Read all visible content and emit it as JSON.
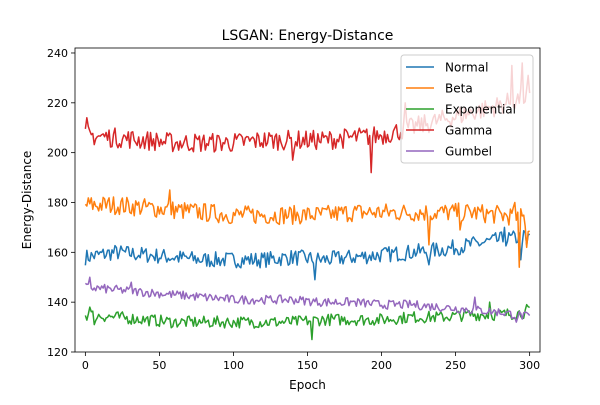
{
  "chart_data": {
    "type": "line",
    "title": "LSGAN: Energy-Distance",
    "xlabel": "Epoch",
    "ylabel": "Energy-Distance",
    "xlim": [
      -7,
      307
    ],
    "ylim": [
      120,
      242
    ],
    "x_ticks": [
      0,
      50,
      100,
      150,
      200,
      250,
      300
    ],
    "y_ticks": [
      120,
      140,
      160,
      180,
      200,
      220,
      240
    ],
    "grid": false,
    "legend_position": "top-right",
    "series": [
      {
        "name": "Normal",
        "color": "#1f77b4",
        "anchors": [
          [
            0,
            158
          ],
          [
            20,
            160
          ],
          [
            40,
            159
          ],
          [
            60,
            158
          ],
          [
            80,
            157
          ],
          [
            100,
            157
          ],
          [
            120,
            157
          ],
          [
            140,
            158
          ],
          [
            160,
            157
          ],
          [
            180,
            158
          ],
          [
            200,
            159
          ],
          [
            220,
            160
          ],
          [
            240,
            161
          ],
          [
            260,
            163
          ],
          [
            280,
            165
          ],
          [
            295,
            166
          ],
          [
            300,
            166
          ]
        ],
        "noise": 3.2,
        "spikes": [
          [
            155,
            149
          ],
          [
            232,
            155
          ],
          [
            283,
            170
          ],
          [
            294,
            157
          ],
          [
            298,
            163
          ]
        ]
      },
      {
        "name": "Beta",
        "color": "#ff7f0e",
        "anchors": [
          [
            0,
            179
          ],
          [
            20,
            179
          ],
          [
            40,
            178
          ],
          [
            60,
            177
          ],
          [
            80,
            176
          ],
          [
            100,
            175
          ],
          [
            120,
            175
          ],
          [
            140,
            175
          ],
          [
            160,
            175
          ],
          [
            180,
            176
          ],
          [
            200,
            176
          ],
          [
            220,
            176
          ],
          [
            240,
            176
          ],
          [
            260,
            176
          ],
          [
            280,
            175
          ],
          [
            296,
            174
          ],
          [
            300,
            169
          ]
        ],
        "noise": 3.8,
        "spikes": [
          [
            57,
            185
          ],
          [
            232,
            163
          ],
          [
            253,
            169
          ],
          [
            290,
            180
          ],
          [
            293,
            154
          ],
          [
            298,
            162
          ]
        ]
      },
      {
        "name": "Exponential",
        "color": "#2ca02c",
        "anchors": [
          [
            0,
            135
          ],
          [
            20,
            134
          ],
          [
            40,
            133
          ],
          [
            60,
            132
          ],
          [
            80,
            132
          ],
          [
            100,
            132
          ],
          [
            120,
            132
          ],
          [
            140,
            132
          ],
          [
            160,
            133
          ],
          [
            180,
            133
          ],
          [
            200,
            133
          ],
          [
            220,
            134
          ],
          [
            240,
            134
          ],
          [
            260,
            135
          ],
          [
            280,
            135
          ],
          [
            300,
            136
          ]
        ],
        "noise": 2.4,
        "spikes": [
          [
            3,
            138
          ],
          [
            6,
            131
          ],
          [
            153,
            125
          ],
          [
            273,
            140
          ],
          [
            298,
            139
          ]
        ]
      },
      {
        "name": "Gamma",
        "color": "#d62728",
        "anchors": [
          [
            0,
            207
          ],
          [
            20,
            206
          ],
          [
            40,
            205
          ],
          [
            60,
            204
          ],
          [
            80,
            204
          ],
          [
            100,
            204
          ],
          [
            120,
            205
          ],
          [
            140,
            205
          ],
          [
            160,
            205
          ],
          [
            180,
            206
          ],
          [
            200,
            207
          ],
          [
            220,
            210
          ],
          [
            240,
            213
          ],
          [
            260,
            216
          ],
          [
            280,
            219
          ],
          [
            300,
            223
          ]
        ],
        "noise": 4.0,
        "spikes": [
          [
            1,
            214
          ],
          [
            140,
            197
          ],
          [
            193,
            192
          ],
          [
            216,
            220
          ],
          [
            288,
            235
          ],
          [
            295,
            236
          ],
          [
            299,
            231
          ]
        ]
      },
      {
        "name": "Gumbel",
        "color": "#9467bd",
        "anchors": [
          [
            0,
            146
          ],
          [
            20,
            145
          ],
          [
            40,
            144
          ],
          [
            60,
            143
          ],
          [
            80,
            142
          ],
          [
            100,
            141
          ],
          [
            120,
            141
          ],
          [
            140,
            141
          ],
          [
            160,
            140
          ],
          [
            180,
            140
          ],
          [
            200,
            139
          ],
          [
            220,
            139
          ],
          [
            240,
            138
          ],
          [
            260,
            137
          ],
          [
            280,
            136
          ],
          [
            300,
            134
          ]
        ],
        "noise": 1.8,
        "spikes": [
          [
            3,
            150
          ],
          [
            31,
            148
          ],
          [
            263,
            142
          ],
          [
            291,
            132
          ]
        ]
      }
    ]
  }
}
